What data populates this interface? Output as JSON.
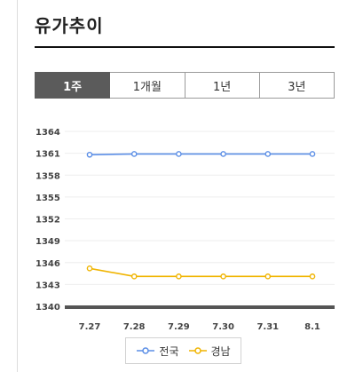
{
  "page": {
    "title": "유가추이"
  },
  "tabs": [
    {
      "label": "1주",
      "active": true
    },
    {
      "label": "1개월",
      "active": false
    },
    {
      "label": "1년",
      "active": false
    },
    {
      "label": "3년",
      "active": false
    }
  ],
  "colors": {
    "series_national": "#5b8ee6",
    "series_gyeongnam": "#f0b400",
    "baseline": "#555555",
    "grid": "#eeeeee",
    "tab_active": "#5b5b5b"
  },
  "chart_data": {
    "type": "line",
    "categories": [
      "7.27",
      "7.28",
      "7.29",
      "7.30",
      "7.31",
      "8.1"
    ],
    "ylim": [
      1340,
      1364
    ],
    "yticks": [
      1340,
      1343,
      1346,
      1349,
      1352,
      1355,
      1358,
      1361,
      1364
    ],
    "grid": "horizontal",
    "legend_position": "bottom",
    "series": [
      {
        "name": "전국",
        "color": "#5b8ee6",
        "values": [
          1360.8,
          1360.9,
          1360.9,
          1360.9,
          1360.9,
          1360.9
        ]
      },
      {
        "name": "경남",
        "color": "#f0b400",
        "values": [
          1345.2,
          1344.1,
          1344.1,
          1344.1,
          1344.1,
          1344.1
        ]
      }
    ]
  }
}
